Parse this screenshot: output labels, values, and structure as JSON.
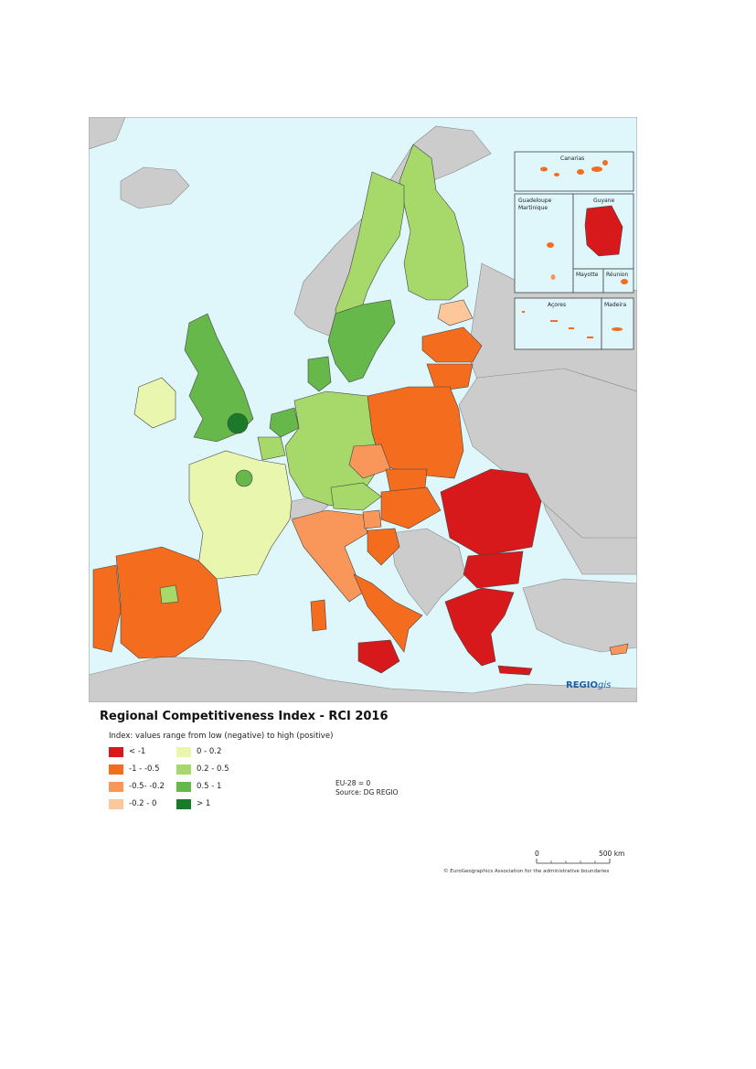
{
  "map": {
    "title": "Regional Competitiveness Index - RCI 2016",
    "legend_subtitle": "Index: values range from low (negative) to high (positive)",
    "legend": [
      {
        "label": "< -1",
        "color": "#d7191c"
      },
      {
        "label": "-1 - -0.5",
        "color": "#f46d1e"
      },
      {
        "label": "-0.5- -0.2",
        "color": "#f9965a"
      },
      {
        "label": "-0.2 - 0",
        "color": "#fcc79a"
      },
      {
        "label": "0 - 0.2",
        "color": "#e8f7ad"
      },
      {
        "label": "0.2 - 0.5",
        "color": "#a6d96a"
      },
      {
        "label": "0.5 - 1",
        "color": "#66b84a"
      },
      {
        "label": "> 1",
        "color": "#1a7a2a"
      }
    ],
    "note_line1": "EU-28 = 0",
    "note_line2": "Source: DG REGIO",
    "scale_zero": "0",
    "scale_max": "500 km",
    "copyright": "© EuroGeographics Association for the administrative boundaries",
    "brand_bold": "REGIO",
    "brand_italic": "gis",
    "insets": {
      "canarias": "Canarias",
      "guadeloupe": "Guadeloupe",
      "martinique": "Martinique",
      "guyane": "Guyane",
      "mayotte": "Mayotte",
      "reunion": "Réunion",
      "acores": "Açores",
      "madeira": "Madeira"
    },
    "colors": {
      "sea": "#dff6fa",
      "non_eu_land": "#cccccc",
      "border": "#555555"
    },
    "regions": [
      {
        "name": "Iceland",
        "class": "non-eu"
      },
      {
        "name": "Norway",
        "class": "non-eu"
      },
      {
        "name": "Finland",
        "class": "0.2 - 0.5"
      },
      {
        "name": "Sweden north",
        "class": "0.2 - 0.5"
      },
      {
        "name": "Stockholm",
        "class": "0.5 - 1"
      },
      {
        "name": "Estonia",
        "class": "-0.2 - 0"
      },
      {
        "name": "Latvia",
        "class": "-1 - -0.5"
      },
      {
        "name": "Lithuania",
        "class": "-1 - -0.5"
      },
      {
        "name": "Poland",
        "class": "-1 - -0.5"
      },
      {
        "name": "Ireland",
        "class": "0 - 0.2"
      },
      {
        "name": "United Kingdom",
        "class": "0.5 - 1"
      },
      {
        "name": "London",
        "class": "> 1"
      },
      {
        "name": "Denmark",
        "class": "0.5 - 1"
      },
      {
        "name": "Netherlands",
        "class": "0.5 - 1"
      },
      {
        "name": "Belgium",
        "class": "0.2 - 0.5"
      },
      {
        "name": "Germany",
        "class": "0.2 - 0.5"
      },
      {
        "name": "France",
        "class": "0 - 0.2"
      },
      {
        "name": "Paris",
        "class": "0.5 - 1"
      },
      {
        "name": "Spain",
        "class": "-1 - -0.5"
      },
      {
        "name": "Madrid",
        "class": "0.2 - 0.5"
      },
      {
        "name": "Portugal",
        "class": "-1 - -0.5"
      },
      {
        "name": "Italy north",
        "class": "-0.5- -0.2"
      },
      {
        "name": "Italy south",
        "class": "-1 - -0.5"
      },
      {
        "name": "Sicily",
        "class": "< -1"
      },
      {
        "name": "Sardinia",
        "class": "-1 - -0.5"
      },
      {
        "name": "Czechia",
        "class": "-0.5- -0.2"
      },
      {
        "name": "Austria",
        "class": "0.2 - 0.5"
      },
      {
        "name": "Slovakia",
        "class": "-1 - -0.5"
      },
      {
        "name": "Hungary",
        "class": "-1 - -0.5"
      },
      {
        "name": "Slovenia",
        "class": "-0.5- -0.2"
      },
      {
        "name": "Croatia",
        "class": "-1 - -0.5"
      },
      {
        "name": "Romania",
        "class": "< -1"
      },
      {
        "name": "Bulgaria",
        "class": "< -1"
      },
      {
        "name": "Greece",
        "class": "< -1"
      },
      {
        "name": "Cyprus",
        "class": "-0.5- -0.2"
      },
      {
        "name": "Switzerland",
        "class": "non-eu"
      },
      {
        "name": "Balkans",
        "class": "non-eu"
      },
      {
        "name": "Belarus / Ukraine",
        "class": "non-eu"
      },
      {
        "name": "Turkey",
        "class": "non-eu"
      },
      {
        "name": "Africa",
        "class": "non-eu"
      },
      {
        "name": "Russia",
        "class": "non-eu"
      }
    ]
  }
}
